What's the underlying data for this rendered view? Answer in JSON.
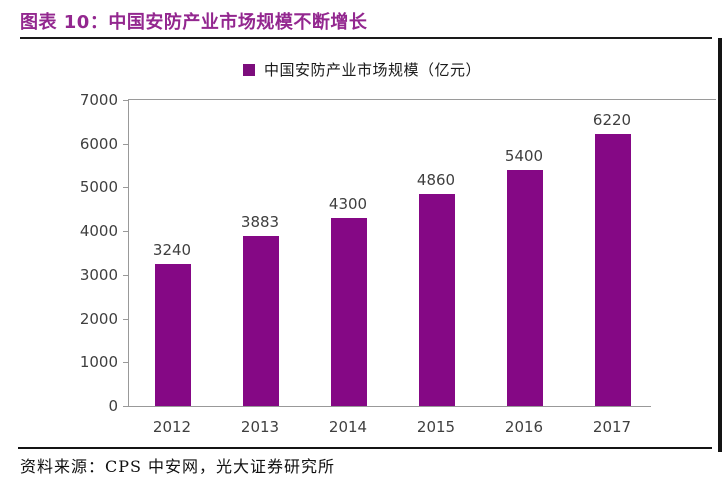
{
  "header": {
    "title": "图表 10：中国安防产业市场规模不断增长"
  },
  "legend": {
    "label": "中国安防产业市场规模（亿元）"
  },
  "footer": {
    "source": "资料来源：CPS 中安网，光大证券研究所"
  },
  "colors": {
    "bar": "#850885",
    "legend_swatch": "#7c0d7c",
    "title_text": "#93278f",
    "axis_line": "#999999",
    "tick_text": "#3f3f3f",
    "rule": "#1a1a1a"
  },
  "chart_data": {
    "type": "bar",
    "title": "图表 10：中国安防产业市场规模不断增长",
    "legend_entries": [
      "中国安防产业市场规模（亿元）"
    ],
    "legend_position": "top-center",
    "categories": [
      "2012",
      "2013",
      "2014",
      "2015",
      "2016",
      "2017"
    ],
    "values": [
      3240,
      3883,
      4300,
      4860,
      5400,
      6220
    ],
    "data_labels": [
      3240,
      3883,
      4300,
      4860,
      5400,
      6220
    ],
    "xlabel": "",
    "ylabel": "",
    "ylim": [
      0,
      7000
    ],
    "ytick_interval": 1000,
    "yticks": [
      0,
      1000,
      2000,
      3000,
      4000,
      5000,
      6000,
      7000
    ],
    "grid": false,
    "bar_color": "#850885",
    "source_note": "资料来源：CPS 中安网，光大证券研究所"
  }
}
